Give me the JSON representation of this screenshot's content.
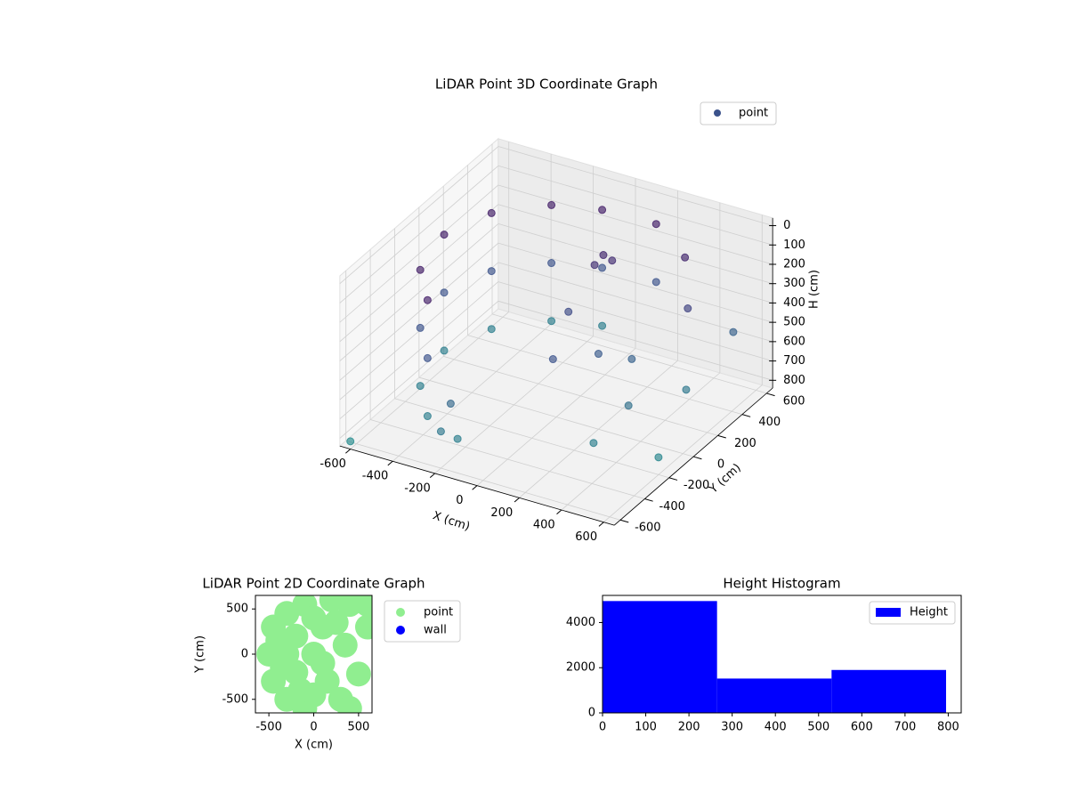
{
  "chart_data": [
    {
      "type": "scatter3d",
      "title": "LiDAR Point 3D Coordinate Graph",
      "xlabel": "X (cm)",
      "ylabel": "Y (cm)",
      "zlabel": "H (cm)",
      "xlim": [
        -650,
        650
      ],
      "xticks": [
        -600,
        -400,
        -200,
        0,
        200,
        400,
        600
      ],
      "ylim": [
        -650,
        650
      ],
      "yticks": [
        -600,
        -400,
        -200,
        0,
        200,
        400,
        600
      ],
      "zlim": [
        -40,
        840
      ],
      "zticks": [
        0,
        100,
        200,
        300,
        400,
        500,
        600,
        700,
        800
      ],
      "zinverted": true,
      "colormap": "viridis",
      "legend": "upper right",
      "grid": true,
      "series": [
        {
          "name": "point",
          "color": "#3b528b",
          "x": [
            -100,
            -300,
            -480,
            -560,
            -500,
            -350,
            -100,
            -300,
            -480,
            -560,
            -500,
            -350,
            -100,
            -300,
            -480,
            -560,
            -500,
            -350,
            150,
            350,
            150,
            -200,
            -150,
            50,
            80,
            20,
            200,
            300,
            400,
            100,
            450,
            500,
            350,
            0,
            -600,
            600,
            550,
            -200
          ],
          "y": [
            550,
            480,
            300,
            50,
            -250,
            -450,
            550,
            480,
            300,
            50,
            -250,
            -450,
            550,
            480,
            300,
            50,
            -250,
            -450,
            560,
            450,
            560,
            -520,
            -550,
            300,
            320,
            280,
            0,
            100,
            -100,
            -200,
            300,
            200,
            -300,
            100,
            -650,
            -200,
            500,
            -600
          ],
          "z": [
            100,
            100,
            100,
            100,
            100,
            100,
            400,
            400,
            400,
            400,
            400,
            400,
            700,
            700,
            700,
            700,
            700,
            700,
            100,
            150,
            400,
            550,
            700,
            150,
            180,
            200,
            450,
            500,
            600,
            400,
            300,
            650,
            700,
            350,
            800,
            750,
            500,
            650
          ]
        }
      ]
    },
    {
      "type": "scatter",
      "title": "LiDAR Point 2D Coordinate Graph",
      "xlabel": "X (cm)",
      "ylabel": "Y (cm)",
      "xlim": [
        -650,
        650
      ],
      "xticks": [
        -500,
        0,
        500
      ],
      "ylim": [
        -650,
        650
      ],
      "yticks": [
        -500,
        0,
        500
      ],
      "legend": "outside right",
      "series": [
        {
          "name": "point",
          "color": "#90ee90",
          "x": [
            -450,
            -500,
            -450,
            -300,
            -100,
            0,
            -300,
            -100,
            200,
            400,
            600,
            -300,
            -200,
            -200,
            0,
            100,
            150,
            300,
            400,
            500,
            250,
            350,
            100,
            -400,
            -350,
            600,
            0,
            -150
          ],
          "y": [
            300,
            0,
            -300,
            -500,
            -600,
            -450,
            450,
            550,
            600,
            550,
            550,
            0,
            200,
            -200,
            0,
            300,
            -300,
            -500,
            -600,
            -220,
            350,
            100,
            -100,
            150,
            -150,
            300,
            400,
            -400
          ]
        },
        {
          "name": "wall",
          "color": "#0000ff",
          "x": [],
          "y": []
        }
      ]
    },
    {
      "type": "histogram",
      "title": "Height Histogram",
      "xlim": [
        0,
        830
      ],
      "xticks": [
        0,
        100,
        200,
        300,
        400,
        500,
        600,
        700,
        800
      ],
      "ylim": [
        0,
        5200
      ],
      "yticks": [
        0,
        2000,
        4000
      ],
      "legend": "upper right",
      "series": [
        {
          "name": "Height",
          "color": "#0000ff",
          "bins": [
            0,
            265,
            530,
            795
          ],
          "counts": [
            4950,
            1520,
            1900
          ]
        }
      ]
    }
  ]
}
